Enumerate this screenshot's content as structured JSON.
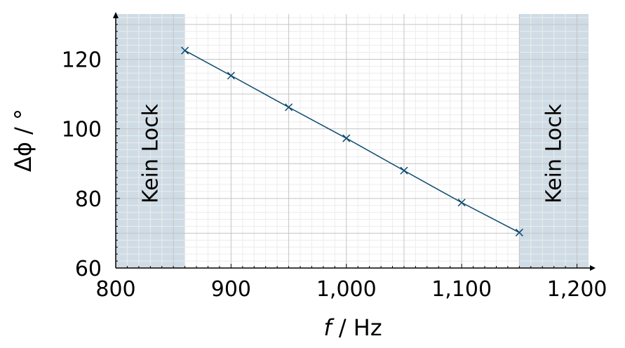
{
  "chart_data": {
    "type": "line",
    "xlabel_var": "f",
    "xlabel_unit": " / Hz",
    "ylabel": "Δϕ / °",
    "xlim": [
      800,
      1210
    ],
    "ylim": [
      60,
      133
    ],
    "x_ticks": [
      800,
      900,
      1000,
      1100,
      1200
    ],
    "x_tick_labels": [
      "800",
      "900",
      "1,000",
      "1,100",
      "1,200"
    ],
    "y_ticks": [
      60,
      80,
      100,
      120
    ],
    "y_tick_labels": [
      "60",
      "80",
      "100",
      "120"
    ],
    "grid": true,
    "series": [
      {
        "x": [
          860,
          900,
          950,
          1000,
          1050,
          1100,
          1150
        ],
        "y": [
          122.5,
          115.3,
          106.2,
          97.3,
          88.0,
          78.8,
          70.2
        ]
      }
    ],
    "regions": [
      {
        "x_from": 800,
        "x_to": 860,
        "label": "Kein Lock"
      },
      {
        "x_from": 1150,
        "x_to": 1210,
        "label": "Kein Lock"
      }
    ],
    "colors": {
      "line": "#0b4a6e",
      "region": "#cfdce5",
      "major_grid": "#c4c4c4",
      "minor_grid": "#ececec"
    }
  }
}
